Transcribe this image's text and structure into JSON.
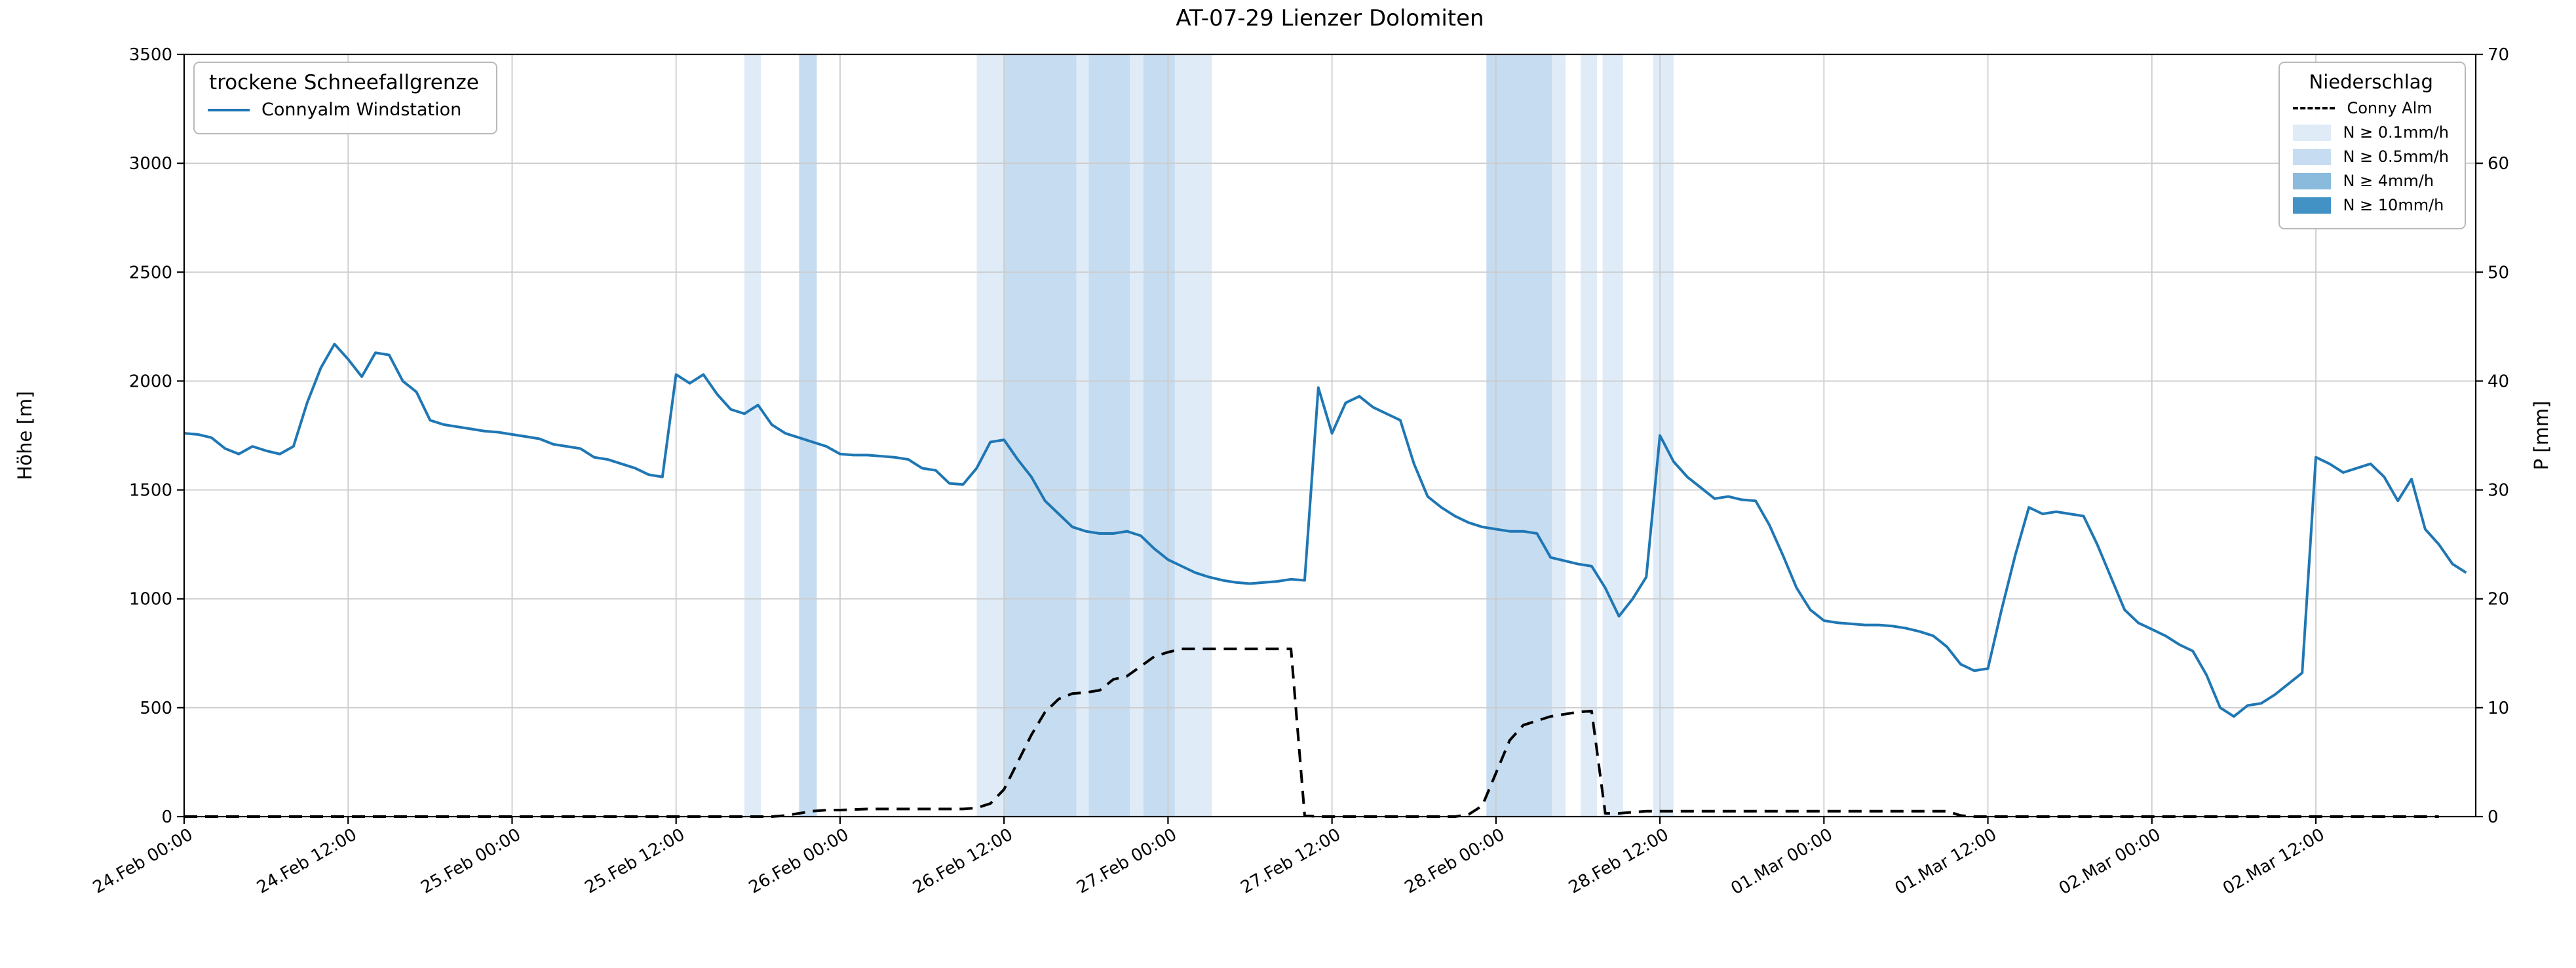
{
  "legend_left": {
    "title": "trockene Schneefallgrenze",
    "entries": [
      {
        "label": "Connyalm Windstation",
        "marker": "line-solid",
        "color": "#1f77b4"
      }
    ]
  },
  "legend_right": {
    "title": "Niederschlag",
    "entries": [
      {
        "label": "Conny Alm",
        "marker": "line-dashed",
        "color": "#000000"
      },
      {
        "label": "N ≥ 0.1mm/h",
        "marker": "patch",
        "color": "#dfecf8"
      },
      {
        "label": "N ≥ 0.5mm/h",
        "marker": "patch",
        "color": "#c6dcf0"
      },
      {
        "label": "N ≥ 4mm/h",
        "marker": "patch",
        "color": "#8abbdd"
      },
      {
        "label": "N ≥ 10mm/h",
        "marker": "patch",
        "color": "#4292c6"
      }
    ]
  },
  "chart_data": {
    "type": "line",
    "title": "AT-07-29 Lienzer Dolomiten",
    "ylabel_left": "Höhe [m]",
    "ylabel_right": "P [mm]",
    "ylim_left": [
      0,
      3500
    ],
    "ylim_right": [
      0,
      70
    ],
    "yticks_left": [
      0,
      500,
      1000,
      1500,
      2000,
      2500,
      3000,
      3500
    ],
    "yticks_right": [
      0,
      10,
      20,
      30,
      40,
      50,
      60,
      70
    ],
    "grid": true,
    "x_unit": "hours since 24.Feb 00:00",
    "x_range": [
      0,
      167.7
    ],
    "x_ticks": {
      "hours": [
        0,
        12,
        24,
        36,
        48,
        60,
        72,
        84,
        96,
        108,
        120,
        132,
        144,
        156
      ],
      "labels": [
        "24.Feb 00:00",
        "24.Feb 12:00",
        "25.Feb 00:00",
        "25.Feb 12:00",
        "26.Feb 00:00",
        "26.Feb 12:00",
        "27.Feb 00:00",
        "27.Feb 12:00",
        "28.Feb 00:00",
        "28.Feb 12:00",
        "01.Mar 00:00",
        "01.Mar 12:00",
        "02.Mar 00:00",
        "02.Mar 12:00"
      ]
    },
    "series": [
      {
        "name": "Connyalm Windstation",
        "axis": "left",
        "unit": "m",
        "color": "#1f77b4",
        "style": "solid",
        "x_step_h": 1,
        "values": [
          1760,
          1755,
          1740,
          1690,
          1665,
          1700,
          1680,
          1665,
          1700,
          1900,
          2060,
          2170,
          2100,
          2020,
          2130,
          2120,
          2000,
          1950,
          1820,
          1800,
          1790,
          1780,
          1770,
          1765,
          1755,
          1745,
          1735,
          1710,
          1700,
          1690,
          1650,
          1640,
          1620,
          1600,
          1570,
          1560,
          2030,
          1990,
          2030,
          1940,
          1870,
          1850,
          1890,
          1800,
          1760,
          1740,
          1720,
          1700,
          1665,
          1660,
          1660,
          1655,
          1650,
          1640,
          1600,
          1590,
          1530,
          1525,
          1600,
          1720,
          1730,
          1640,
          1560,
          1450,
          1390,
          1330,
          1310,
          1300,
          1300,
          1310,
          1290,
          1230,
          1180,
          1150,
          1120,
          1100,
          1085,
          1075,
          1070,
          1075,
          1080,
          1090,
          1085,
          1970,
          1760,
          1900,
          1930,
          1880,
          1850,
          1820,
          1620,
          1470,
          1420,
          1380,
          1350,
          1330,
          1320,
          1310,
          1310,
          1300,
          1190,
          1175,
          1160,
          1150,
          1050,
          920,
          1000,
          1100,
          1750,
          1630,
          1560,
          1510,
          1460,
          1470,
          1455,
          1450,
          1340,
          1200,
          1050,
          950,
          900,
          890,
          885,
          880,
          880,
          875,
          865,
          850,
          830,
          780,
          700,
          670,
          680,
          950,
          1200,
          1420,
          1390,
          1400,
          1390,
          1380,
          1250,
          1100,
          950,
          890,
          860,
          830,
          790,
          760,
          650,
          500,
          460,
          510,
          520,
          560,
          610,
          660,
          1650,
          1620,
          1580,
          1600,
          1620,
          1560,
          1450,
          1550,
          1320,
          1250,
          1160,
          1120
        ]
      },
      {
        "name": "Conny Alm",
        "axis": "right",
        "unit": "mm",
        "color": "#000000",
        "style": "dashed",
        "x_step_h": 1,
        "values": [
          0,
          0,
          0,
          0,
          0,
          0,
          0,
          0,
          0,
          0,
          0,
          0,
          0,
          0,
          0,
          0,
          0,
          0,
          0,
          0,
          0,
          0,
          0,
          0,
          0,
          0,
          0,
          0,
          0,
          0,
          0,
          0,
          0,
          0,
          0,
          0,
          0,
          0,
          0,
          0,
          0,
          0,
          0,
          0,
          0.1,
          0.3,
          0.5,
          0.6,
          0.6,
          0.65,
          0.7,
          0.7,
          0.7,
          0.7,
          0.7,
          0.7,
          0.7,
          0.7,
          0.8,
          1.2,
          2.5,
          5,
          7.5,
          9.6,
          10.8,
          11.3,
          11.4,
          11.6,
          12.6,
          12.9,
          13.8,
          14.7,
          15.1,
          15.4,
          15.4,
          15.4,
          15.4,
          15.4,
          15.4,
          15.4,
          15.4,
          15.4,
          0.1,
          0,
          0,
          0,
          0,
          0,
          0,
          0,
          0,
          0,
          0,
          0,
          0.2,
          1,
          4,
          7,
          8.4,
          8.8,
          9.2,
          9.4,
          9.6,
          9.7,
          0.3,
          0.3,
          0.4,
          0.5,
          0.5,
          0.5,
          0.5,
          0.5,
          0.5,
          0.5,
          0.5,
          0.5,
          0.5,
          0.5,
          0.5,
          0.5,
          0.5,
          0.5,
          0.5,
          0.5,
          0.5,
          0.5,
          0.5,
          0.5,
          0.5,
          0.5,
          0.1,
          0,
          0,
          0,
          0,
          0,
          0,
          0,
          0,
          0,
          0,
          0,
          0,
          0,
          0,
          0,
          0,
          0,
          0,
          0,
          0,
          0,
          0,
          0,
          0,
          0,
          0,
          0,
          0,
          0,
          0,
          0,
          0,
          0,
          0,
          0
        ]
      }
    ],
    "precip_bands": {
      "tier_colors": {
        "0.1": "#dfecf8",
        "0.5": "#c6dcf0",
        "4": "#8abbdd",
        "10": "#4292c6"
      },
      "intervals": [
        {
          "start_h": 41,
          "end_h": 42.2,
          "tier": "0.1"
        },
        {
          "start_h": 45,
          "end_h": 46.3,
          "tier": "0.5"
        },
        {
          "start_h": 58,
          "end_h": 60,
          "tier": "0.1"
        },
        {
          "start_h": 60,
          "end_h": 65.3,
          "tier": "0.5"
        },
        {
          "start_h": 65.3,
          "end_h": 66.2,
          "tier": "0.1"
        },
        {
          "start_h": 66.2,
          "end_h": 69.2,
          "tier": "0.5"
        },
        {
          "start_h": 69.2,
          "end_h": 70.2,
          "tier": "0.1"
        },
        {
          "start_h": 70.2,
          "end_h": 72.5,
          "tier": "0.5"
        },
        {
          "start_h": 72.5,
          "end_h": 75.2,
          "tier": "0.1"
        },
        {
          "start_h": 95.3,
          "end_h": 100.1,
          "tier": "0.5"
        },
        {
          "start_h": 100.1,
          "end_h": 101.1,
          "tier": "0.1"
        },
        {
          "start_h": 102.2,
          "end_h": 103.4,
          "tier": "0.1"
        },
        {
          "start_h": 103.8,
          "end_h": 105.3,
          "tier": "0.1"
        },
        {
          "start_h": 107.5,
          "end_h": 109,
          "tier": "0.1"
        }
      ]
    }
  }
}
